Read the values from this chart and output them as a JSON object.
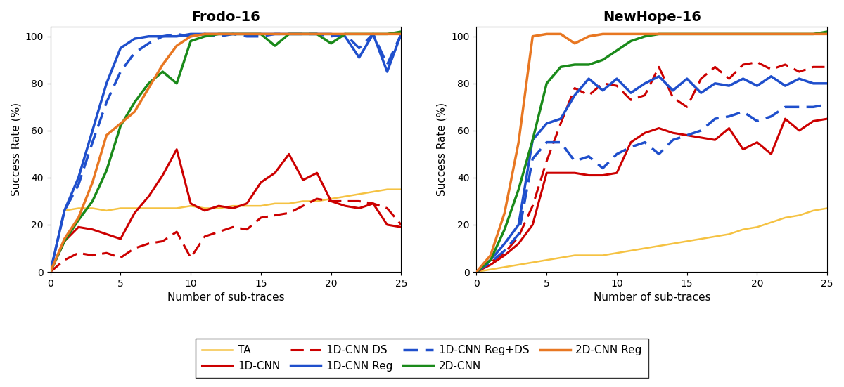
{
  "frodo": {
    "title": "Frodo-16",
    "x": [
      0,
      1,
      2,
      3,
      4,
      5,
      6,
      7,
      8,
      9,
      10,
      11,
      12,
      13,
      14,
      15,
      16,
      17,
      18,
      19,
      20,
      21,
      22,
      23,
      24,
      25
    ],
    "TA": [
      0,
      26,
      27,
      27,
      26,
      27,
      27,
      27,
      27,
      27,
      28,
      27,
      27,
      28,
      28,
      28,
      29,
      29,
      30,
      30,
      31,
      32,
      33,
      34,
      35,
      35
    ],
    "CNN1D": [
      0,
      13,
      19,
      18,
      16,
      14,
      25,
      32,
      41,
      52,
      29,
      26,
      28,
      27,
      29,
      38,
      42,
      50,
      39,
      42,
      30,
      28,
      27,
      29,
      20,
      19
    ],
    "CNN1D_DS": [
      0,
      5,
      8,
      7,
      8,
      6,
      10,
      12,
      13,
      17,
      6,
      15,
      17,
      19,
      18,
      23,
      24,
      25,
      28,
      31,
      30,
      30,
      30,
      29,
      27,
      20
    ],
    "CNN1D_Reg": [
      0,
      26,
      40,
      60,
      80,
      95,
      99,
      100,
      100,
      100,
      101,
      101,
      101,
      101,
      101,
      101,
      101,
      101,
      101,
      101,
      101,
      100,
      91,
      101,
      85,
      101
    ],
    "CNN1D_RegDS": [
      0,
      26,
      37,
      55,
      72,
      85,
      93,
      97,
      100,
      101,
      100,
      101,
      100,
      101,
      100,
      100,
      101,
      101,
      101,
      101,
      100,
      101,
      95,
      101,
      88,
      101
    ],
    "CNN2D": [
      0,
      13,
      22,
      30,
      43,
      62,
      72,
      80,
      85,
      80,
      98,
      100,
      101,
      101,
      101,
      101,
      96,
      101,
      101,
      101,
      97,
      101,
      101,
      101,
      101,
      102
    ],
    "CNN2D_Reg": [
      0,
      14,
      23,
      38,
      58,
      63,
      68,
      78,
      88,
      96,
      100,
      101,
      101,
      101,
      101,
      101,
      101,
      101,
      101,
      101,
      101,
      101,
      101,
      101,
      101,
      101
    ]
  },
  "newhope": {
    "title": "NewHope-16",
    "x": [
      0,
      1,
      2,
      3,
      4,
      5,
      6,
      7,
      8,
      9,
      10,
      11,
      12,
      13,
      14,
      15,
      16,
      17,
      18,
      19,
      20,
      21,
      22,
      23,
      24,
      25
    ],
    "TA": [
      0,
      1,
      2,
      3,
      4,
      5,
      6,
      7,
      7,
      7,
      8,
      9,
      10,
      11,
      12,
      13,
      14,
      15,
      16,
      18,
      19,
      21,
      23,
      24,
      26,
      27
    ],
    "CNN1D": [
      0,
      3,
      7,
      12,
      20,
      42,
      42,
      42,
      41,
      41,
      42,
      55,
      59,
      61,
      59,
      58,
      57,
      56,
      61,
      52,
      55,
      50,
      65,
      60,
      64,
      65
    ],
    "CNN1D_DS": [
      0,
      4,
      8,
      15,
      28,
      47,
      63,
      78,
      75,
      80,
      79,
      73,
      75,
      87,
      74,
      70,
      82,
      87,
      82,
      88,
      89,
      86,
      88,
      85,
      87,
      87
    ],
    "CNN1D_Reg": [
      0,
      5,
      12,
      20,
      56,
      63,
      65,
      75,
      82,
      77,
      82,
      76,
      80,
      83,
      77,
      82,
      76,
      80,
      79,
      82,
      79,
      83,
      79,
      82,
      80,
      80
    ],
    "CNN1D_RegDS": [
      0,
      4,
      9,
      16,
      48,
      55,
      55,
      47,
      49,
      44,
      50,
      53,
      55,
      50,
      56,
      58,
      60,
      65,
      66,
      68,
      64,
      66,
      70,
      70,
      70,
      71
    ],
    "CNN2D": [
      0,
      5,
      18,
      35,
      56,
      80,
      87,
      88,
      88,
      90,
      94,
      98,
      100,
      101,
      101,
      101,
      101,
      101,
      101,
      101,
      101,
      101,
      101,
      101,
      101,
      102
    ],
    "CNN2D_Reg": [
      0,
      7,
      25,
      55,
      100,
      101,
      101,
      97,
      100,
      101,
      101,
      101,
      101,
      101,
      101,
      101,
      101,
      101,
      101,
      101,
      101,
      101,
      101,
      101,
      101,
      101
    ]
  },
  "colors": {
    "TA": "#f5c242",
    "CNN1D": "#cc0000",
    "CNN1D_DS": "#cc0000",
    "CNN1D_Reg": "#1f4fcc",
    "CNN1D_RegDS": "#1f4fcc",
    "CNN2D": "#1a8a1a",
    "CNN2D_Reg": "#e87722"
  },
  "legend": {
    "TA": "TA",
    "CNN1D": "1D-CNN",
    "CNN1D_DS": "1D-CNN DS",
    "CNN1D_Reg": "1D-CNN Reg",
    "CNN1D_RegDS": "1D-CNN Reg+DS",
    "CNN2D": "2D-CNN",
    "CNN2D_Reg": "2D-CNN Reg"
  },
  "ylabel": "Success Rate (%)",
  "xlabel": "Number of sub-traces",
  "ylim": [
    0,
    104
  ],
  "xlim": [
    0,
    25
  ],
  "yticks": [
    0,
    20,
    40,
    60,
    80,
    100
  ],
  "xticks": [
    0,
    5,
    10,
    15,
    20,
    25
  ]
}
